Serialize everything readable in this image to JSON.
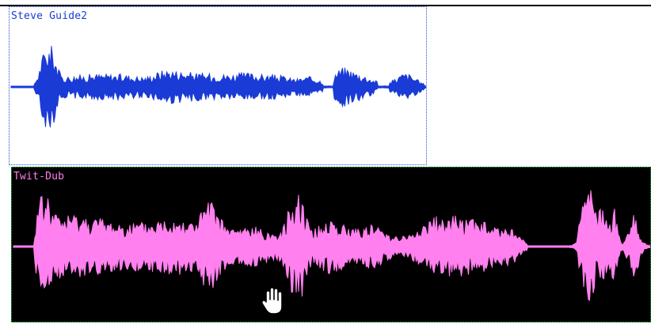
{
  "tracks": [
    {
      "id": "guide",
      "name": "Steve Guide2",
      "waveform_color": "#1a3bd6",
      "background": "#ffffff",
      "selected": false
    },
    {
      "id": "dub",
      "name": "Twit-Dub",
      "waveform_color": "#ff80ee",
      "background": "#000000",
      "selected": true
    }
  ],
  "cursor": {
    "icon": "grab-hand-icon"
  }
}
